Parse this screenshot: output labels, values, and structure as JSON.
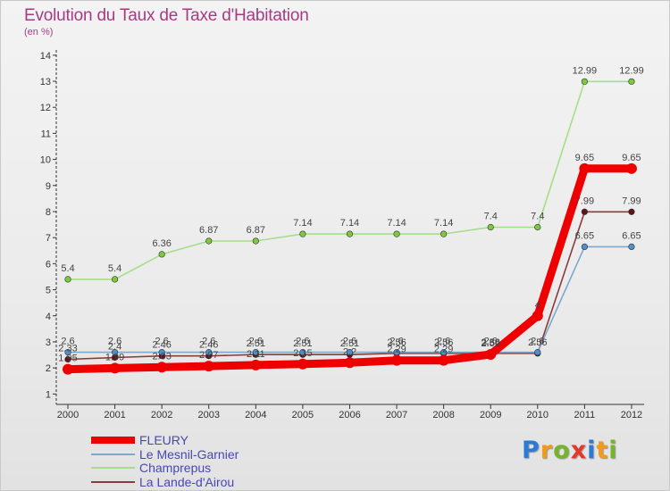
{
  "chart_data": {
    "type": "line",
    "title": "Evolution du Taux de Taxe d'Habitation",
    "subtitle": "(en %)",
    "xlabel": "",
    "ylabel": "",
    "x": [
      2000,
      2001,
      2002,
      2003,
      2004,
      2005,
      2006,
      2007,
      2008,
      2009,
      2010,
      2011,
      2012
    ],
    "yticks": [
      1,
      2,
      3,
      4,
      5,
      6,
      7,
      8,
      9,
      10,
      11,
      12,
      13,
      14
    ],
    "ylim": [
      0.6,
      14.2
    ],
    "grid": false,
    "legend": "bottom-left",
    "series": [
      {
        "name": "FLEURY",
        "color": "#ee0000",
        "marker_color": "#ee0000",
        "values": [
          1.95,
          1.99,
          2.03,
          2.07,
          2.11,
          2.15,
          2.2,
          2.29,
          2.29,
          2.52,
          4,
          9.65,
          9.65
        ]
      },
      {
        "name": "Le Mesnil-Garnier",
        "color": "#7fa8cf",
        "marker_color": "#4f8fcc",
        "values": [
          2.6,
          2.6,
          2.6,
          2.6,
          2.6,
          2.6,
          2.6,
          2.6,
          2.6,
          2.6,
          2.6,
          6.65,
          6.65
        ]
      },
      {
        "name": "Champrepus",
        "color": "#a6dd8a",
        "marker_color": "#7cc93c",
        "values": [
          5.4,
          5.4,
          6.36,
          6.87,
          6.87,
          7.14,
          7.14,
          7.14,
          7.14,
          7.4,
          7.4,
          12.99,
          12.99
        ]
      },
      {
        "name": "La Lande-d'Airou",
        "color": "#8a3b3b",
        "marker_color": "#5c1414",
        "values": [
          2.33,
          2.4,
          2.46,
          2.46,
          2.51,
          2.51,
          2.51,
          2.56,
          2.56,
          2.56,
          2.56,
          7.99,
          7.99
        ]
      }
    ],
    "axis_color": "#333333",
    "label_color": "#444444",
    "legend_text_color": "#4747b5"
  },
  "logo": {
    "letters": [
      "P",
      "r",
      "o",
      "x",
      "i",
      "t",
      "i"
    ],
    "colors": [
      "#2b7bd6",
      "#f29a1a",
      "#74b52c",
      "#e23a2a",
      "#2b7bd6",
      "#f29a1a",
      "#74b52c"
    ]
  }
}
